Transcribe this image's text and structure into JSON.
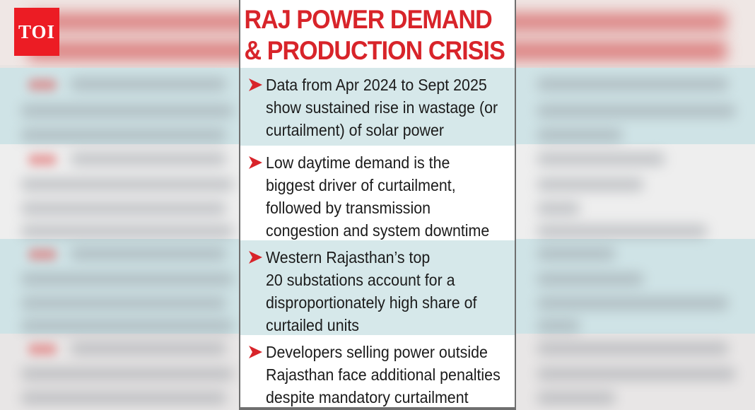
{
  "logo": {
    "text": "TOI",
    "color": "#ec1c24"
  },
  "card": {
    "title_line1": "RAJ POWER DEMAND",
    "title_line2": "& PRODUCTION CRISIS",
    "title_color": "#d8242a",
    "accent_shade": "#d6e8ea",
    "bullet_icon": "red-arrow-icon",
    "items": [
      {
        "lines": [
          "Data from Apr 2024 to Sept 2025",
          "show sustained rise in wastage (or",
          "curtailment) of solar power"
        ]
      },
      {
        "lines": [
          "Low daytime demand is the",
          "biggest driver of curtailment,",
          "followed by transmission",
          "congestion and system downtime"
        ]
      },
      {
        "lines": [
          "Western Rajasthan’s top",
          "20 substations account for a",
          "disproportionately high share of",
          "curtailed units"
        ]
      },
      {
        "lines": [
          "Developers selling power outside",
          "Rajasthan face additional penalties",
          "despite mandatory curtailment"
        ]
      }
    ]
  }
}
